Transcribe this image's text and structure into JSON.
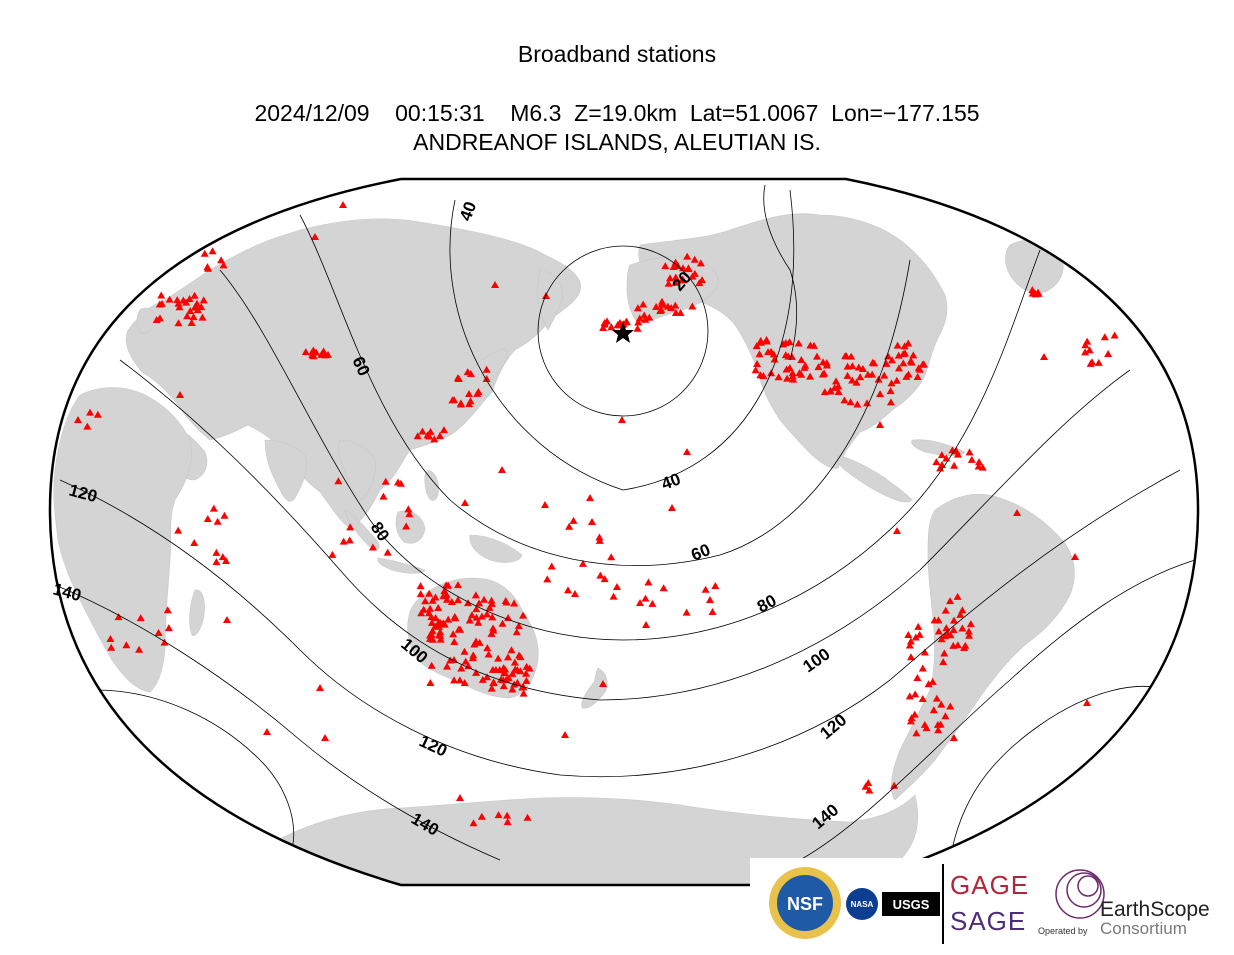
{
  "header": {
    "title": "Broadband stations",
    "event_line": "2024/12/09    00:15:31    M6.3  Z=19.0km  Lat=51.0067  Lon=−177.155",
    "region": "ANDREANOF ISLANDS, ALEUTIAN IS."
  },
  "event": {
    "date": "2024/12/09",
    "time": "00:15:31",
    "magnitude": "M6.3",
    "depth": "Z=19.0km",
    "latitude": 51.0067,
    "longitude": -177.155
  },
  "map": {
    "projection": "Winkel-style world projection centered on Pacific",
    "marker": "black star at epicenter",
    "station_marker": "red triangle",
    "colors": {
      "land": "#d4d4d4",
      "ocean": "#ffffff",
      "stations": "#ff0000",
      "contours": "#000000",
      "epicenter": "#000000"
    },
    "distance_contours_deg": [
      20,
      40,
      60,
      80,
      100,
      120,
      140,
      160
    ],
    "contour_labels": [
      "40",
      "60",
      "80",
      "100",
      "120",
      "140",
      "40",
      "60",
      "80",
      "100",
      "120",
      "140",
      "20"
    ]
  },
  "logos": {
    "nsf": "NSF",
    "nasa": "NASA",
    "usgs": "USGS",
    "gage": "GAGE",
    "sage": "SAGE",
    "operated_by": "Operated by",
    "earthscope": "EarthScope",
    "consortium": "Consortium"
  }
}
